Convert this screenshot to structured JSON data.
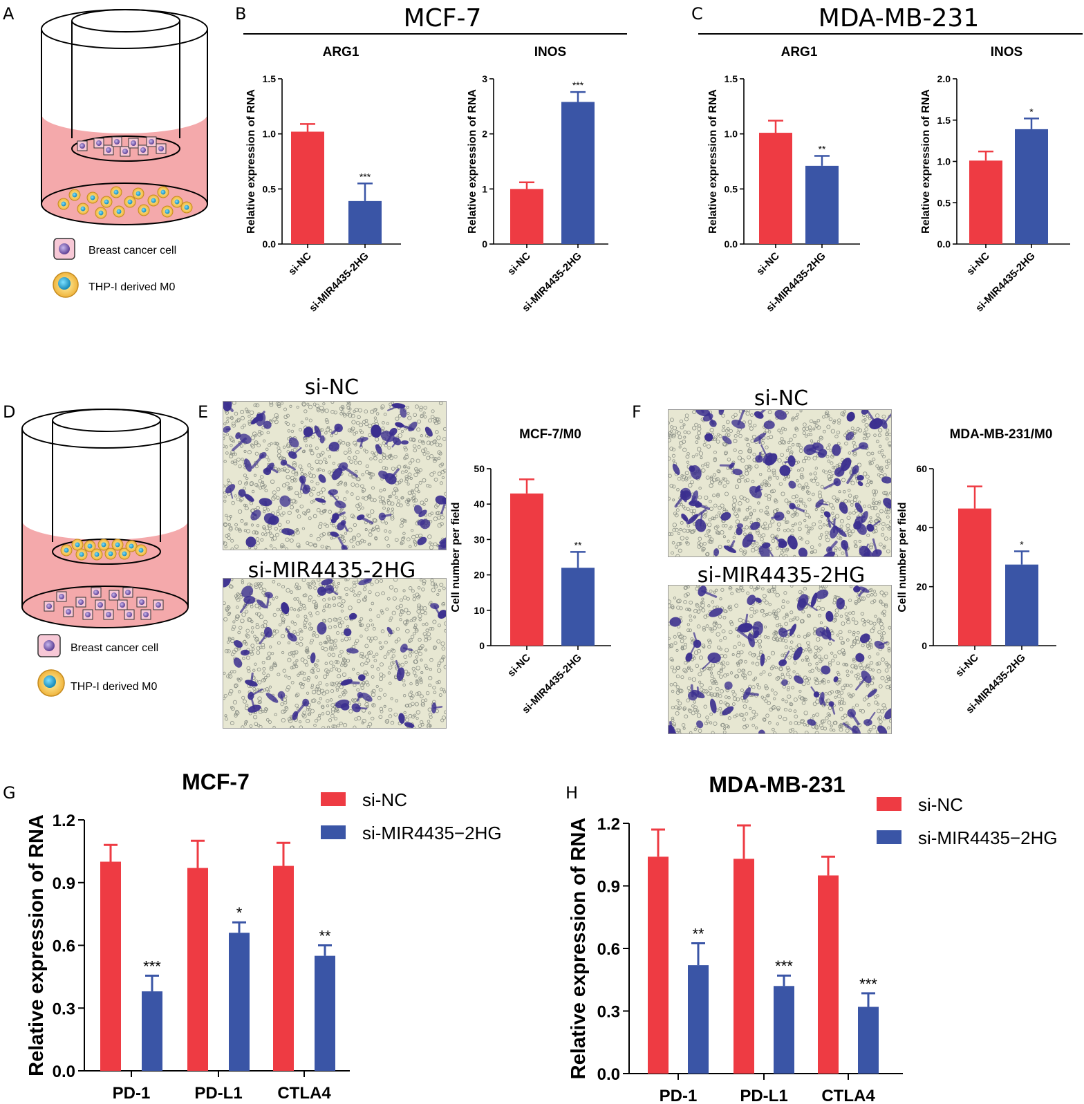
{
  "panels": {
    "A": "A",
    "B": "B",
    "C": "C",
    "D": "D",
    "E": "E",
    "F": "F",
    "G": "G",
    "H": "H"
  },
  "headers": {
    "mcf7": "MCF-7",
    "mda": "MDA-MB-231"
  },
  "schematic": {
    "legend_cancer": "Breast cancer cell",
    "legend_m0": "THP-I derived M0"
  },
  "micrographs": {
    "si_nc": "si-NC",
    "si_mir": "si-MIR4435-2HG"
  },
  "colors": {
    "red": "#ee3b43",
    "blue": "#3a55a6",
    "medium": "#f4a9ab",
    "stain": "#3b2f8f"
  },
  "chart_data": [
    {
      "id": "B1",
      "type": "bar",
      "title": "ARG1",
      "ylabel": "Relative expression of RNA",
      "categories": [
        "si-NC",
        "si-MIR4435-2HG"
      ],
      "values": [
        1.02,
        0.39
      ],
      "errors": [
        0.07,
        0.16
      ],
      "sig": [
        "",
        "***"
      ],
      "ylim": [
        0,
        1.5
      ],
      "yticks": [
        "0.0",
        "0.5",
        "1.0",
        "1.5"
      ],
      "tick_values": [
        0,
        0.5,
        1.0,
        1.5
      ]
    },
    {
      "id": "B2",
      "type": "bar",
      "title": "INOS",
      "ylabel": "Relative expression of RNA",
      "categories": [
        "si-NC",
        "si-MIR4435-2HG"
      ],
      "values": [
        1.0,
        2.58
      ],
      "errors": [
        0.12,
        0.18
      ],
      "sig": [
        "",
        "***"
      ],
      "ylim": [
        0,
        3
      ],
      "yticks": [
        "0",
        "1",
        "2",
        "3"
      ],
      "tick_values": [
        0,
        1,
        2,
        3
      ]
    },
    {
      "id": "C1",
      "type": "bar",
      "title": "ARG1",
      "ylabel": "Relative expression of RNA",
      "categories": [
        "si-NC",
        "si-MIR4435-2HG"
      ],
      "values": [
        1.01,
        0.71
      ],
      "errors": [
        0.11,
        0.09
      ],
      "sig": [
        "",
        "**"
      ],
      "ylim": [
        0,
        1.5
      ],
      "yticks": [
        "0.0",
        "0.5",
        "1.0",
        "1.5"
      ],
      "tick_values": [
        0,
        0.5,
        1.0,
        1.5
      ]
    },
    {
      "id": "C2",
      "type": "bar",
      "title": "INOS",
      "ylabel": "Relative expression of RNA",
      "categories": [
        "si-NC",
        "si-MIR4435-2HG"
      ],
      "values": [
        1.01,
        1.39
      ],
      "errors": [
        0.11,
        0.13
      ],
      "sig": [
        "",
        "*"
      ],
      "ylim": [
        0,
        2.0
      ],
      "yticks": [
        "0.0",
        "0.5",
        "1.0",
        "1.5",
        "2.0"
      ],
      "tick_values": [
        0,
        0.5,
        1.0,
        1.5,
        2.0
      ]
    },
    {
      "id": "E",
      "type": "bar",
      "title": "MCF-7/M0",
      "ylabel": "Cell number per field",
      "categories": [
        "si-NC",
        "si-MIR4435-2HG"
      ],
      "values": [
        43,
        22
      ],
      "errors": [
        4,
        4.5
      ],
      "sig": [
        "",
        "**"
      ],
      "ylim": [
        0,
        50
      ],
      "yticks": [
        "0",
        "10",
        "20",
        "30",
        "40",
        "50"
      ],
      "tick_values": [
        0,
        10,
        20,
        30,
        40,
        50
      ]
    },
    {
      "id": "F",
      "type": "bar",
      "title": "MDA-MB-231/M0",
      "ylabel": "Cell number per field",
      "categories": [
        "si-NC",
        "si-MIR4435-2HG"
      ],
      "values": [
        46.5,
        27.5
      ],
      "errors": [
        7.5,
        4.5
      ],
      "sig": [
        "",
        "*"
      ],
      "ylim": [
        0,
        60
      ],
      "yticks": [
        "0",
        "20",
        "40",
        "60"
      ],
      "tick_values": [
        0,
        20,
        40,
        60
      ]
    },
    {
      "id": "G",
      "type": "grouped_bar",
      "title": "MCF-7",
      "ylabel": "Relative expression of RNA",
      "categories": [
        "PD-1",
        "PD-L1",
        "CTLA4"
      ],
      "series": [
        {
          "name": "si-NC",
          "values": [
            1.0,
            0.97,
            0.98
          ],
          "errors": [
            0.08,
            0.13,
            0.11
          ],
          "sig": [
            "",
            "",
            ""
          ]
        },
        {
          "name": "si-MIR4435−2HG",
          "values": [
            0.38,
            0.66,
            0.55
          ],
          "errors": [
            0.075,
            0.05,
            0.05
          ],
          "sig": [
            "***",
            "*",
            "**"
          ]
        }
      ],
      "ylim": [
        0,
        1.2
      ],
      "yticks": [
        "0.0",
        "0.3",
        "0.6",
        "0.9",
        "1.2"
      ],
      "tick_values": [
        0,
        0.3,
        0.6,
        0.9,
        1.2
      ]
    },
    {
      "id": "H",
      "type": "grouped_bar",
      "title": "MDA-MB-231",
      "ylabel": "Relative expression of RNA",
      "categories": [
        "PD-1",
        "PD-L1",
        "CTLA4"
      ],
      "series": [
        {
          "name": "si-NC",
          "values": [
            1.04,
            1.03,
            0.95
          ],
          "errors": [
            0.13,
            0.16,
            0.09
          ],
          "sig": [
            "",
            "",
            ""
          ]
        },
        {
          "name": "si-MIR4435−2HG",
          "values": [
            0.52,
            0.42,
            0.32
          ],
          "errors": [
            0.105,
            0.05,
            0.065
          ],
          "sig": [
            "**",
            "***",
            "***"
          ]
        }
      ],
      "ylim": [
        0,
        1.2
      ],
      "yticks": [
        "0.0",
        "0.3",
        "0.6",
        "0.9",
        "1.2"
      ],
      "tick_values": [
        0,
        0.3,
        0.6,
        0.9,
        1.2
      ]
    }
  ]
}
